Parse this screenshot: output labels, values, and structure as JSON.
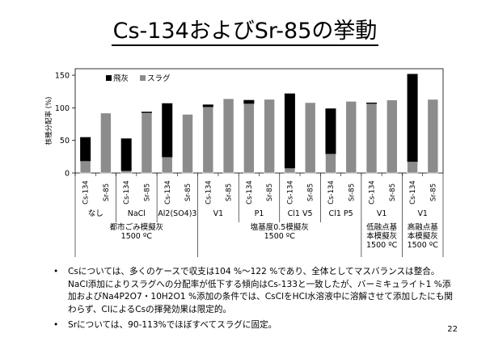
{
  "slide": {
    "title": "Cs-134およびSr-85の挙動",
    "page_number": "22",
    "notes": [
      "Csについては、多くのケースで収支は104 %～122 %であり、全体としてマスバランスは整合。NaCl添加によりスラグへの分配率が低下する傾向はCs-133と一致したが、バーミキュライト1 %添加およびNa4P2O7・10H2O1 %添加の条件では、CsClをHCl水溶液中に溶解させて添加したにも関わらず、ClによるCsの揮発効果は限定的。",
      "Srについては、90-113%でほぼすべてスラグに固定。"
    ]
  },
  "chart_data": {
    "type": "bar",
    "stacked": true,
    "ylabel": "核種分配率 (%)",
    "ylim": [
      0,
      160
    ],
    "yticks": [
      0,
      50,
      100,
      150
    ],
    "legend_position": "top-left",
    "colors": {
      "fly_ash": "#000000",
      "slag": "#8c8c8c",
      "axis": "#000000",
      "grid_line": "#bfbfbf"
    },
    "categories": [
      "Cs-134",
      "Sr-85",
      "Cs-134",
      "Sr-85",
      "Cs-134",
      "Sr-85",
      "Cs-134",
      "Sr-85",
      "Cs-134",
      "Sr-85",
      "Cs-134",
      "Sr-85",
      "Cs-134",
      "Sr-85",
      "Cs-134",
      "Sr-85",
      "Cs-134",
      "Sr-85"
    ],
    "series": [
      {
        "name": "スラグ",
        "key": "slag",
        "values": [
          18,
          92,
          3,
          92,
          24,
          90,
          101,
          114,
          106,
          113,
          7,
          108,
          29,
          110,
          106,
          112,
          17,
          113
        ]
      },
      {
        "name": "飛灰",
        "key": "fly_ash",
        "values": [
          37,
          0,
          50,
          2,
          83,
          0,
          4,
          0,
          6,
          0,
          115,
          0,
          70,
          0,
          2,
          0,
          135,
          0
        ]
      }
    ],
    "group_labels": [
      "なし",
      "NaCl",
      "Al2(SO4)3",
      "V1",
      "P1",
      "Cl1 V5",
      "Cl1 P5",
      "V1",
      "V1"
    ],
    "super_groups": [
      {
        "label_lines": [
          "都市ごみ模擬灰",
          "1500 ºC"
        ],
        "span": [
          0,
          2
        ]
      },
      {
        "label_lines": [
          "塩基度0.5模擬灰",
          "1500 ºC"
        ],
        "span": [
          3,
          6
        ]
      },
      {
        "label_lines": [
          "低融点基",
          "本模擬灰",
          "1500 ºC"
        ],
        "span": [
          7,
          7
        ]
      },
      {
        "label_lines": [
          "高融点基",
          "本模擬灰",
          "1500 ºC"
        ],
        "span": [
          8,
          8
        ]
      }
    ]
  }
}
